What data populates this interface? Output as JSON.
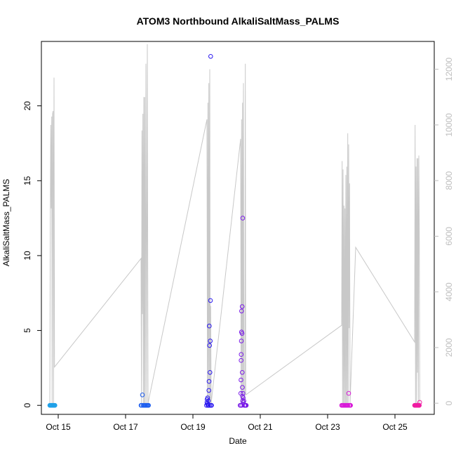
{
  "chart_data": {
    "type": "scatter",
    "title": "ATOM3 Northbound AlkaliSaltMass_PALMS",
    "xlabel": "Date",
    "ylabel": "AlkaliSaltMass_PALMS",
    "x_range": [
      "2016-10-14 12:00",
      "2016-10-26 04:00"
    ],
    "ylim": [
      -0.6,
      24.3
    ],
    "y2lim": [
      -400,
      13000
    ],
    "x_ticks": [
      {
        "date": "2016-10-15",
        "label": "Oct 15"
      },
      {
        "date": "2016-10-17",
        "label": "Oct 17"
      },
      {
        "date": "2016-10-19",
        "label": "Oct 19"
      },
      {
        "date": "2016-10-21",
        "label": "Oct 21"
      },
      {
        "date": "2016-10-23",
        "label": "Oct 23"
      },
      {
        "date": "2016-10-25",
        "label": "Oct 25"
      }
    ],
    "y_ticks": [
      {
        "value": 0,
        "label": "0"
      },
      {
        "value": 5,
        "label": "5"
      },
      {
        "value": 10,
        "label": "10"
      },
      {
        "value": 15,
        "label": "15"
      },
      {
        "value": 20,
        "label": "20"
      }
    ],
    "y2_ticks": [
      {
        "value": 0,
        "label": "0"
      },
      {
        "value": 2000,
        "label": "2000"
      },
      {
        "value": 4000,
        "label": "4000"
      },
      {
        "value": 6000,
        "label": "6000"
      },
      {
        "value": 8000,
        "label": "8000"
      },
      {
        "value": 10000,
        "label": "10000"
      },
      {
        "value": 12000,
        "label": "12000"
      }
    ],
    "grid": false,
    "colors": {
      "background_line": "#c8c8c8",
      "right_axis": "#bebebe",
      "flight1": "#1fa0e8",
      "flight2": "#1e5fef",
      "flight3": "#2a18f0",
      "flight4": "#7b1ce8",
      "flight5": "#d81bd8",
      "flight6": "#f01ca2"
    },
    "altitude_line": [
      {
        "x": "2016-10-14 18:00",
        "y": 0
      },
      {
        "x": "2016-10-14 18:20",
        "y": 6500
      },
      {
        "x": "2016-10-14 18:40",
        "y": 10000
      },
      {
        "x": "2016-10-14 19:00",
        "y": 7000
      },
      {
        "x": "2016-10-14 19:20",
        "y": 10300
      },
      {
        "x": "2016-10-14 19:40",
        "y": 0
      },
      {
        "x": "2016-10-14 20:00",
        "y": 10400
      },
      {
        "x": "2016-10-14 20:20",
        "y": 10500
      },
      {
        "x": "2016-10-14 20:40",
        "y": 0
      },
      {
        "x": "2016-10-14 21:00",
        "y": 11700
      },
      {
        "x": "2016-10-14 21:20",
        "y": 1300
      },
      {
        "x": "2016-10-17 11:00",
        "y": 5200
      },
      {
        "x": "2016-10-17 11:20",
        "y": 0
      },
      {
        "x": "2016-10-17 11:40",
        "y": 9800
      },
      {
        "x": "2016-10-17 12:00",
        "y": 3200
      },
      {
        "x": "2016-10-17 12:20",
        "y": 10400
      },
      {
        "x": "2016-10-17 12:40",
        "y": 0
      },
      {
        "x": "2016-10-17 13:00",
        "y": 11000
      },
      {
        "x": "2016-10-17 13:20",
        "y": 0
      },
      {
        "x": "2016-10-17 13:40",
        "y": 11000
      },
      {
        "x": "2016-10-17 14:00",
        "y": 0
      },
      {
        "x": "2016-10-17 14:30",
        "y": 12200
      },
      {
        "x": "2016-10-17 15:00",
        "y": 0
      },
      {
        "x": "2016-10-17 15:30",
        "y": 12900
      },
      {
        "x": "2016-10-17 16:00",
        "y": 0
      },
      {
        "x": "2016-10-19 10:00",
        "y": 10200
      },
      {
        "x": "2016-10-19 10:20",
        "y": 0
      },
      {
        "x": "2016-10-19 10:40",
        "y": 10800
      },
      {
        "x": "2016-10-19 11:00",
        "y": 0
      },
      {
        "x": "2016-10-19 11:20",
        "y": 11500
      },
      {
        "x": "2016-10-19 11:40",
        "y": 0
      },
      {
        "x": "2016-10-19 12:00",
        "y": 12000
      },
      {
        "x": "2016-10-19 12:20",
        "y": 0
      },
      {
        "x": "2016-10-19 12:40",
        "y": 3500
      },
      {
        "x": "2016-10-19 13:00",
        "y": 0
      },
      {
        "x": "2016-10-20 10:00",
        "y": 9500
      },
      {
        "x": "2016-10-20 10:20",
        "y": 0
      },
      {
        "x": "2016-10-20 10:40",
        "y": 10200
      },
      {
        "x": "2016-10-20 11:00",
        "y": 0
      },
      {
        "x": "2016-10-20 11:20",
        "y": 10800
      },
      {
        "x": "2016-10-20 11:40",
        "y": 0
      },
      {
        "x": "2016-10-20 12:00",
        "y": 11500
      },
      {
        "x": "2016-10-20 12:20",
        "y": 500
      },
      {
        "x": "2016-10-20 13:00",
        "y": 0
      },
      {
        "x": "2016-10-20 13:20",
        "y": 12200
      },
      {
        "x": "2016-10-20 13:40",
        "y": 300
      },
      {
        "x": "2016-10-23 10:00",
        "y": 2800
      },
      {
        "x": "2016-10-23 10:20",
        "y": 8700
      },
      {
        "x": "2016-10-23 10:40",
        "y": 0
      },
      {
        "x": "2016-10-23 11:00",
        "y": 8400
      },
      {
        "x": "2016-10-23 11:20",
        "y": 0
      },
      {
        "x": "2016-10-23 11:40",
        "y": 7100
      },
      {
        "x": "2016-10-23 12:00",
        "y": 0
      },
      {
        "x": "2016-10-23 12:20",
        "y": 7000
      },
      {
        "x": "2016-10-23 12:40",
        "y": 0
      },
      {
        "x": "2016-10-23 13:00",
        "y": 8200
      },
      {
        "x": "2016-10-23 13:20",
        "y": 0
      },
      {
        "x": "2016-10-23 13:40",
        "y": 8500
      },
      {
        "x": "2016-10-23 14:00",
        "y": 0
      },
      {
        "x": "2016-10-23 14:20",
        "y": 9700
      },
      {
        "x": "2016-10-23 14:40",
        "y": 0
      },
      {
        "x": "2016-10-23 15:00",
        "y": 9300
      },
      {
        "x": "2016-10-23 15:20",
        "y": 2700
      },
      {
        "x": "2016-10-23 15:40",
        "y": 7900
      },
      {
        "x": "2016-10-23 16:00",
        "y": 0
      },
      {
        "x": "2016-10-23 20:00",
        "y": 5600
      },
      {
        "x": "2016-10-25 14:00",
        "y": 2200
      },
      {
        "x": "2016-10-25 14:20",
        "y": 10000
      },
      {
        "x": "2016-10-25 14:40",
        "y": 0
      },
      {
        "x": "2016-10-25 15:00",
        "y": 8500
      },
      {
        "x": "2016-10-25 15:20",
        "y": 0
      },
      {
        "x": "2016-10-25 15:40",
        "y": 8800
      },
      {
        "x": "2016-10-25 16:00",
        "y": 1100
      },
      {
        "x": "2016-10-25 16:20",
        "y": 8800
      },
      {
        "x": "2016-10-25 16:40",
        "y": 0
      },
      {
        "x": "2016-10-25 17:00",
        "y": 8900
      },
      {
        "x": "2016-10-25 17:20",
        "y": 6100
      },
      {
        "x": "2016-10-25 17:40",
        "y": 0
      }
    ],
    "series": [
      {
        "flight": 1,
        "color_key": "flight1",
        "points": [
          {
            "x": "2016-10-14 18:00",
            "y": 0.0
          },
          {
            "x": "2016-10-14 18:25",
            "y": 0.0
          },
          {
            "x": "2016-10-14 18:50",
            "y": 0.0
          },
          {
            "x": "2016-10-14 19:15",
            "y": 0.0
          },
          {
            "x": "2016-10-14 19:40",
            "y": 0.0
          },
          {
            "x": "2016-10-14 20:05",
            "y": 0.0
          },
          {
            "x": "2016-10-14 20:30",
            "y": 0.0
          },
          {
            "x": "2016-10-14 20:55",
            "y": 0.0
          },
          {
            "x": "2016-10-14 21:20",
            "y": 0.0
          },
          {
            "x": "2016-10-14 21:40",
            "y": 0.0
          }
        ]
      },
      {
        "flight": 2,
        "color_key": "flight2",
        "points": [
          {
            "x": "2016-10-17 11:00",
            "y": 0.0
          },
          {
            "x": "2016-10-17 11:30",
            "y": 0.0
          },
          {
            "x": "2016-10-17 12:00",
            "y": 0.7
          },
          {
            "x": "2016-10-17 12:30",
            "y": 0.0
          },
          {
            "x": "2016-10-17 13:00",
            "y": 0.0
          },
          {
            "x": "2016-10-17 13:30",
            "y": 0.0
          },
          {
            "x": "2016-10-17 14:00",
            "y": 0.0
          },
          {
            "x": "2016-10-17 14:30",
            "y": 0.0
          },
          {
            "x": "2016-10-17 15:00",
            "y": 0.0
          },
          {
            "x": "2016-10-17 15:30",
            "y": 0.0
          },
          {
            "x": "2016-10-17 16:00",
            "y": 0.0
          },
          {
            "x": "2016-10-17 16:20",
            "y": 0.0
          }
        ]
      },
      {
        "flight": 3,
        "color_key": "flight3",
        "points": [
          {
            "x": "2016-10-19 09:40",
            "y": 0.0
          },
          {
            "x": "2016-10-19 10:00",
            "y": 0.2
          },
          {
            "x": "2016-10-19 10:10",
            "y": 0.4
          },
          {
            "x": "2016-10-19 10:20",
            "y": 0.1
          },
          {
            "x": "2016-10-19 10:30",
            "y": 0.5
          },
          {
            "x": "2016-10-19 10:45",
            "y": 0.0
          },
          {
            "x": "2016-10-19 11:00",
            "y": 0.3
          },
          {
            "x": "2016-10-19 11:10",
            "y": 0.0
          },
          {
            "x": "2016-10-19 11:20",
            "y": 1.0
          },
          {
            "x": "2016-10-19 11:30",
            "y": 1.6
          },
          {
            "x": "2016-10-19 11:40",
            "y": 5.3
          },
          {
            "x": "2016-10-19 11:50",
            "y": 4.0
          },
          {
            "x": "2016-10-19 12:00",
            "y": 0.0
          },
          {
            "x": "2016-10-19 12:10",
            "y": 2.2
          },
          {
            "x": "2016-10-19 12:20",
            "y": 4.3
          },
          {
            "x": "2016-10-19 12:30",
            "y": 7.0
          },
          {
            "x": "2016-10-19 12:40",
            "y": 23.3
          },
          {
            "x": "2016-10-19 12:50",
            "y": 0.0
          },
          {
            "x": "2016-10-19 13:00",
            "y": 0.0
          },
          {
            "x": "2016-10-19 13:15",
            "y": 0.0
          }
        ]
      },
      {
        "flight": 4,
        "color_key": "flight4",
        "points": [
          {
            "x": "2016-10-20 09:40",
            "y": 0.0
          },
          {
            "x": "2016-10-20 10:00",
            "y": 0.0
          },
          {
            "x": "2016-10-20 10:10",
            "y": 0.8
          },
          {
            "x": "2016-10-20 10:15",
            "y": 1.7
          },
          {
            "x": "2016-10-20 10:20",
            "y": 3.0
          },
          {
            "x": "2016-10-20 10:25",
            "y": 3.4
          },
          {
            "x": "2016-10-20 10:30",
            "y": 4.3
          },
          {
            "x": "2016-10-20 10:35",
            "y": 4.9
          },
          {
            "x": "2016-10-20 10:40",
            "y": 6.3
          },
          {
            "x": "2016-10-20 10:50",
            "y": 0.0
          },
          {
            "x": "2016-10-20 11:00",
            "y": 4.8
          },
          {
            "x": "2016-10-20 11:05",
            "y": 6.6
          },
          {
            "x": "2016-10-20 11:10",
            "y": 2.2
          },
          {
            "x": "2016-10-20 11:15",
            "y": 1.2
          },
          {
            "x": "2016-10-20 11:20",
            "y": 0.6
          },
          {
            "x": "2016-10-20 11:25",
            "y": 0.3
          },
          {
            "x": "2016-10-20 11:30",
            "y": 12.5
          },
          {
            "x": "2016-10-20 11:40",
            "y": 0.8
          },
          {
            "x": "2016-10-20 11:50",
            "y": 0.5
          },
          {
            "x": "2016-10-20 12:00",
            "y": 0.2
          },
          {
            "x": "2016-10-20 12:20",
            "y": 0.3
          },
          {
            "x": "2016-10-20 12:40",
            "y": 0.0
          },
          {
            "x": "2016-10-20 13:00",
            "y": 0.0
          },
          {
            "x": "2016-10-20 13:20",
            "y": 0.0
          },
          {
            "x": "2016-10-20 13:40",
            "y": 0.0
          },
          {
            "x": "2016-10-20 14:00",
            "y": 0.0
          }
        ]
      },
      {
        "flight": 5,
        "color_key": "flight5",
        "points": [
          {
            "x": "2016-10-23 10:00",
            "y": 0.0
          },
          {
            "x": "2016-10-23 10:30",
            "y": 0.0
          },
          {
            "x": "2016-10-23 11:00",
            "y": 0.0
          },
          {
            "x": "2016-10-23 11:30",
            "y": 0.0
          },
          {
            "x": "2016-10-23 12:00",
            "y": 0.0
          },
          {
            "x": "2016-10-23 12:30",
            "y": 0.0
          },
          {
            "x": "2016-10-23 13:00",
            "y": 0.0
          },
          {
            "x": "2016-10-23 13:30",
            "y": 0.0
          },
          {
            "x": "2016-10-23 14:00",
            "y": 0.0
          },
          {
            "x": "2016-10-23 14:30",
            "y": 0.0
          },
          {
            "x": "2016-10-23 15:00",
            "y": 0.8
          },
          {
            "x": "2016-10-23 15:20",
            "y": 0.0
          },
          {
            "x": "2016-10-23 15:40",
            "y": 0.0
          },
          {
            "x": "2016-10-23 16:00",
            "y": 0.0
          },
          {
            "x": "2016-10-23 16:20",
            "y": 0.0
          }
        ]
      },
      {
        "flight": 6,
        "color_key": "flight6",
        "points": [
          {
            "x": "2016-10-25 14:00",
            "y": 0.0
          },
          {
            "x": "2016-10-25 14:20",
            "y": 0.0
          },
          {
            "x": "2016-10-25 14:40",
            "y": 0.0
          },
          {
            "x": "2016-10-25 15:00",
            "y": 0.0
          },
          {
            "x": "2016-10-25 15:20",
            "y": 0.0
          },
          {
            "x": "2016-10-25 15:40",
            "y": 0.0
          },
          {
            "x": "2016-10-25 16:00",
            "y": 0.0
          },
          {
            "x": "2016-10-25 16:20",
            "y": 0.0
          },
          {
            "x": "2016-10-25 16:40",
            "y": 0.0
          },
          {
            "x": "2016-10-25 17:00",
            "y": 0.0
          },
          {
            "x": "2016-10-25 17:20",
            "y": 0.0
          },
          {
            "x": "2016-10-25 17:40",
            "y": 0.2
          }
        ]
      }
    ]
  }
}
